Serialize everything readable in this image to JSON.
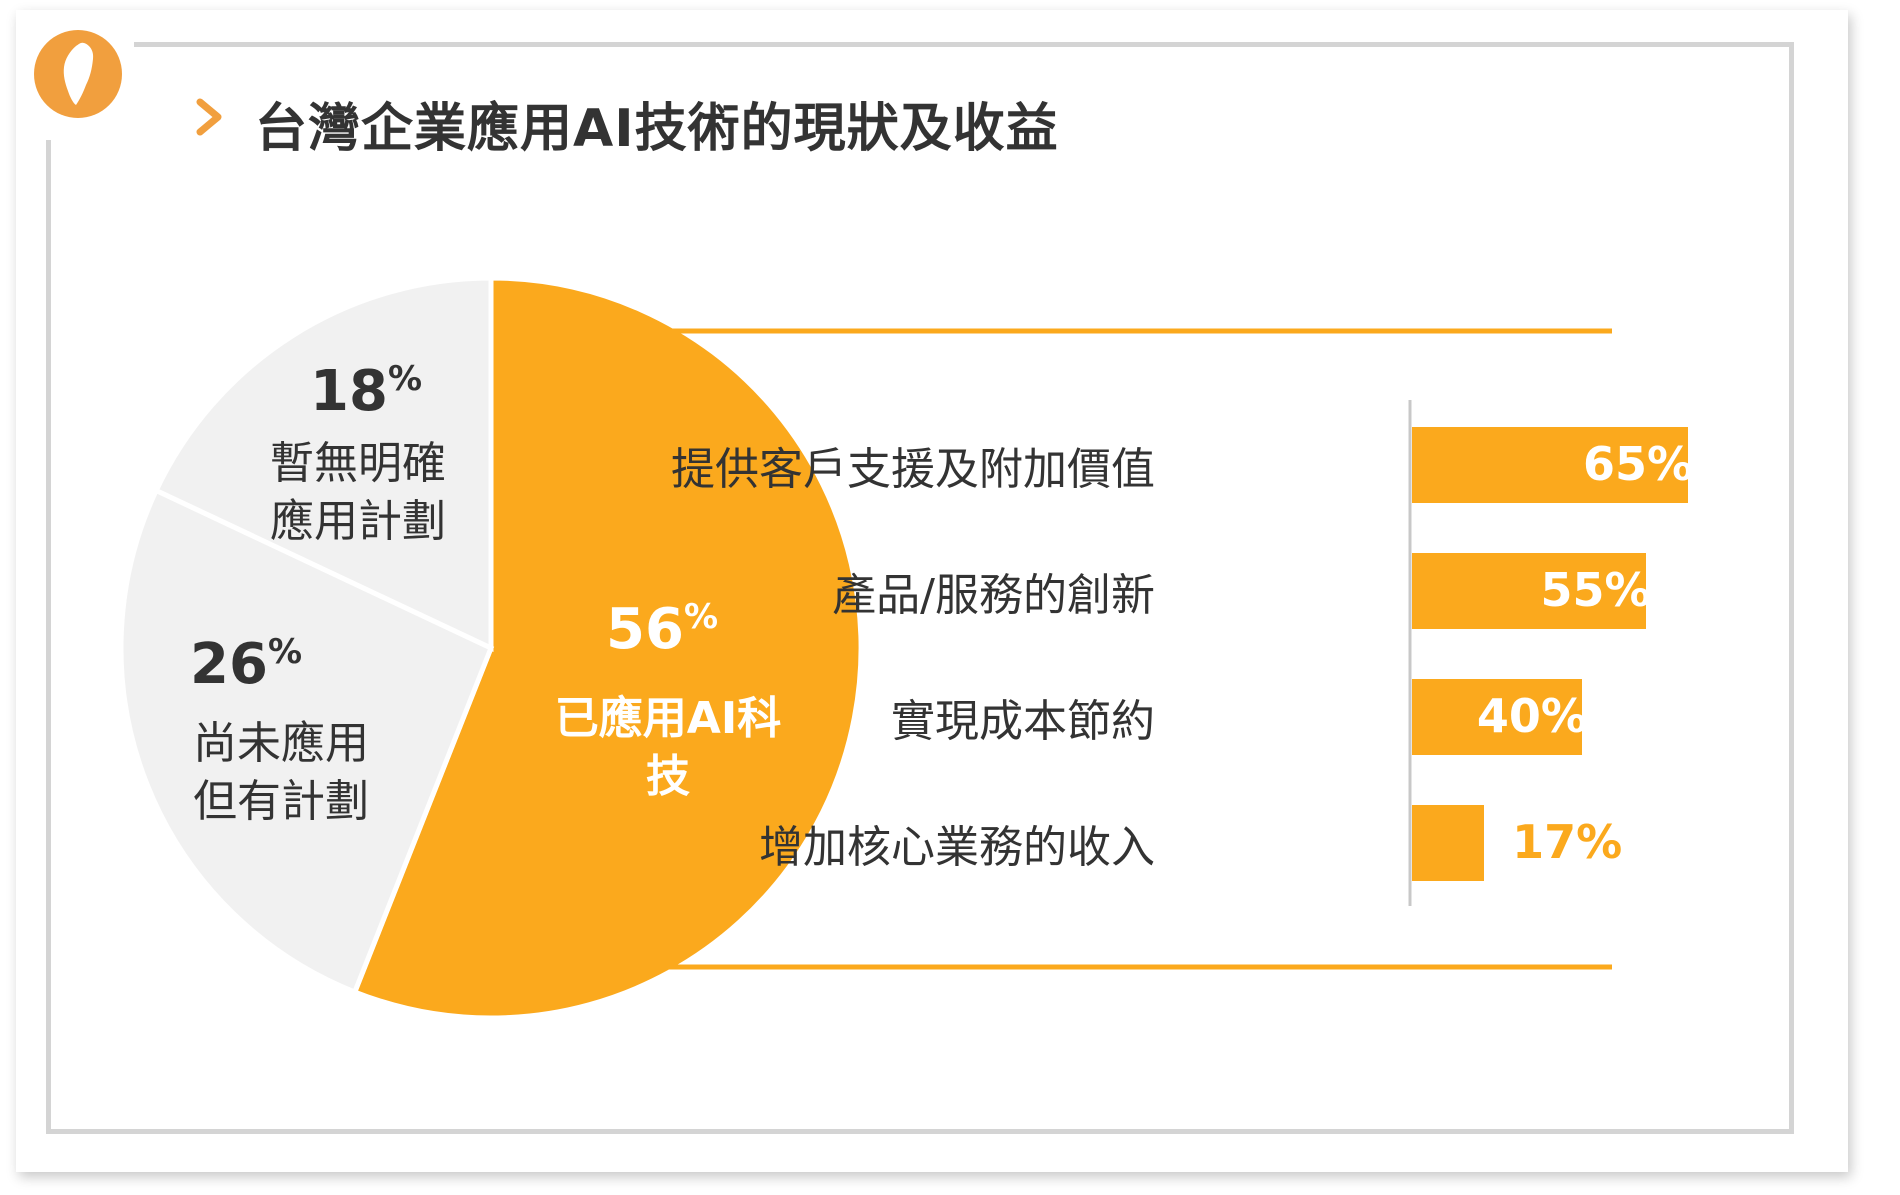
{
  "title": "台灣企業應用AI技術的現狀及收益",
  "colors": {
    "accent": "#fba91d",
    "logo": "#f19f3e",
    "pie_gray": "#f1f1f1",
    "text": "#333333",
    "frame": "#d4d4d4"
  },
  "icons": [
    "taiwan-map-icon",
    "chevron-right-icon"
  ],
  "chart_data": [
    {
      "type": "pie",
      "slices": [
        {
          "value": 56,
          "value_label": "56",
          "unit": "%",
          "label_lines": [
            "已應用AI科",
            "技"
          ],
          "color": "#fba91d"
        },
        {
          "value": 26,
          "value_label": "26",
          "unit": "%",
          "label_lines": [
            "尚未應用",
            "但有計劃"
          ],
          "color": "#f1f1f1"
        },
        {
          "value": 18,
          "value_label": "18",
          "unit": "%",
          "label_lines": [
            "暫無明確",
            "應用計劃"
          ],
          "color": "#f1f1f1"
        }
      ]
    },
    {
      "type": "bar",
      "orientation": "horizontal",
      "categories": [
        "提供客戶支援及附加價值",
        "產品/服務的創新",
        "實現成本節約",
        "增加核心業務的收入"
      ],
      "values": [
        65,
        55,
        40,
        17
      ],
      "value_labels": [
        "65%",
        "55%",
        "40%",
        "17%"
      ],
      "color": "#fba91d"
    }
  ]
}
